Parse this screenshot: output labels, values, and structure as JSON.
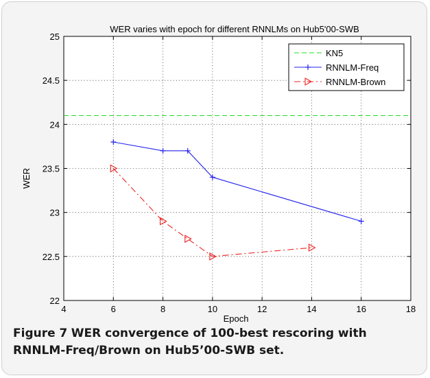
{
  "figure": {
    "label": "Figure 7",
    "caption": "WER convergence of 100-best rescoring with RNNLM-Freq/Brown on Hub5’00-SWB set."
  },
  "chart_data": {
    "type": "line",
    "title": "WER  varies with epoch for different RNNLMs on Hub5'00-SWB",
    "xlabel": "Epoch",
    "ylabel": "WER",
    "xlim": [
      4,
      18
    ],
    "ylim": [
      22,
      25
    ],
    "xticks": [
      4,
      6,
      8,
      10,
      12,
      14,
      16,
      18
    ],
    "yticks": [
      22,
      22.5,
      23,
      23.5,
      24,
      24.5,
      25
    ],
    "xtick_labels": [
      "4",
      "6",
      "8",
      "10",
      "12",
      "14",
      "16",
      "18"
    ],
    "ytick_labels": [
      "22",
      "22.5",
      "23",
      "23.5",
      "24",
      "24.5",
      "25"
    ],
    "grid": true,
    "legend_position": "top-right",
    "series": [
      {
        "name": "KN5",
        "style": "dashed",
        "marker": "none",
        "color": "#22dd22",
        "x": [
          4,
          18
        ],
        "y": [
          24.1,
          24.1
        ]
      },
      {
        "name": "RNNLM-Freq",
        "style": "solid",
        "marker": "plus",
        "color": "#2323ee",
        "x": [
          6,
          8,
          9,
          10,
          16
        ],
        "y": [
          23.8,
          23.7,
          23.7,
          23.4,
          22.9
        ]
      },
      {
        "name": "RNNLM-Brown",
        "style": "dashdot",
        "marker": "triangle-right",
        "color": "#ee2222",
        "x": [
          6,
          8,
          9,
          10,
          14
        ],
        "y": [
          23.5,
          22.9,
          22.7,
          22.5,
          22.6
        ]
      }
    ]
  }
}
